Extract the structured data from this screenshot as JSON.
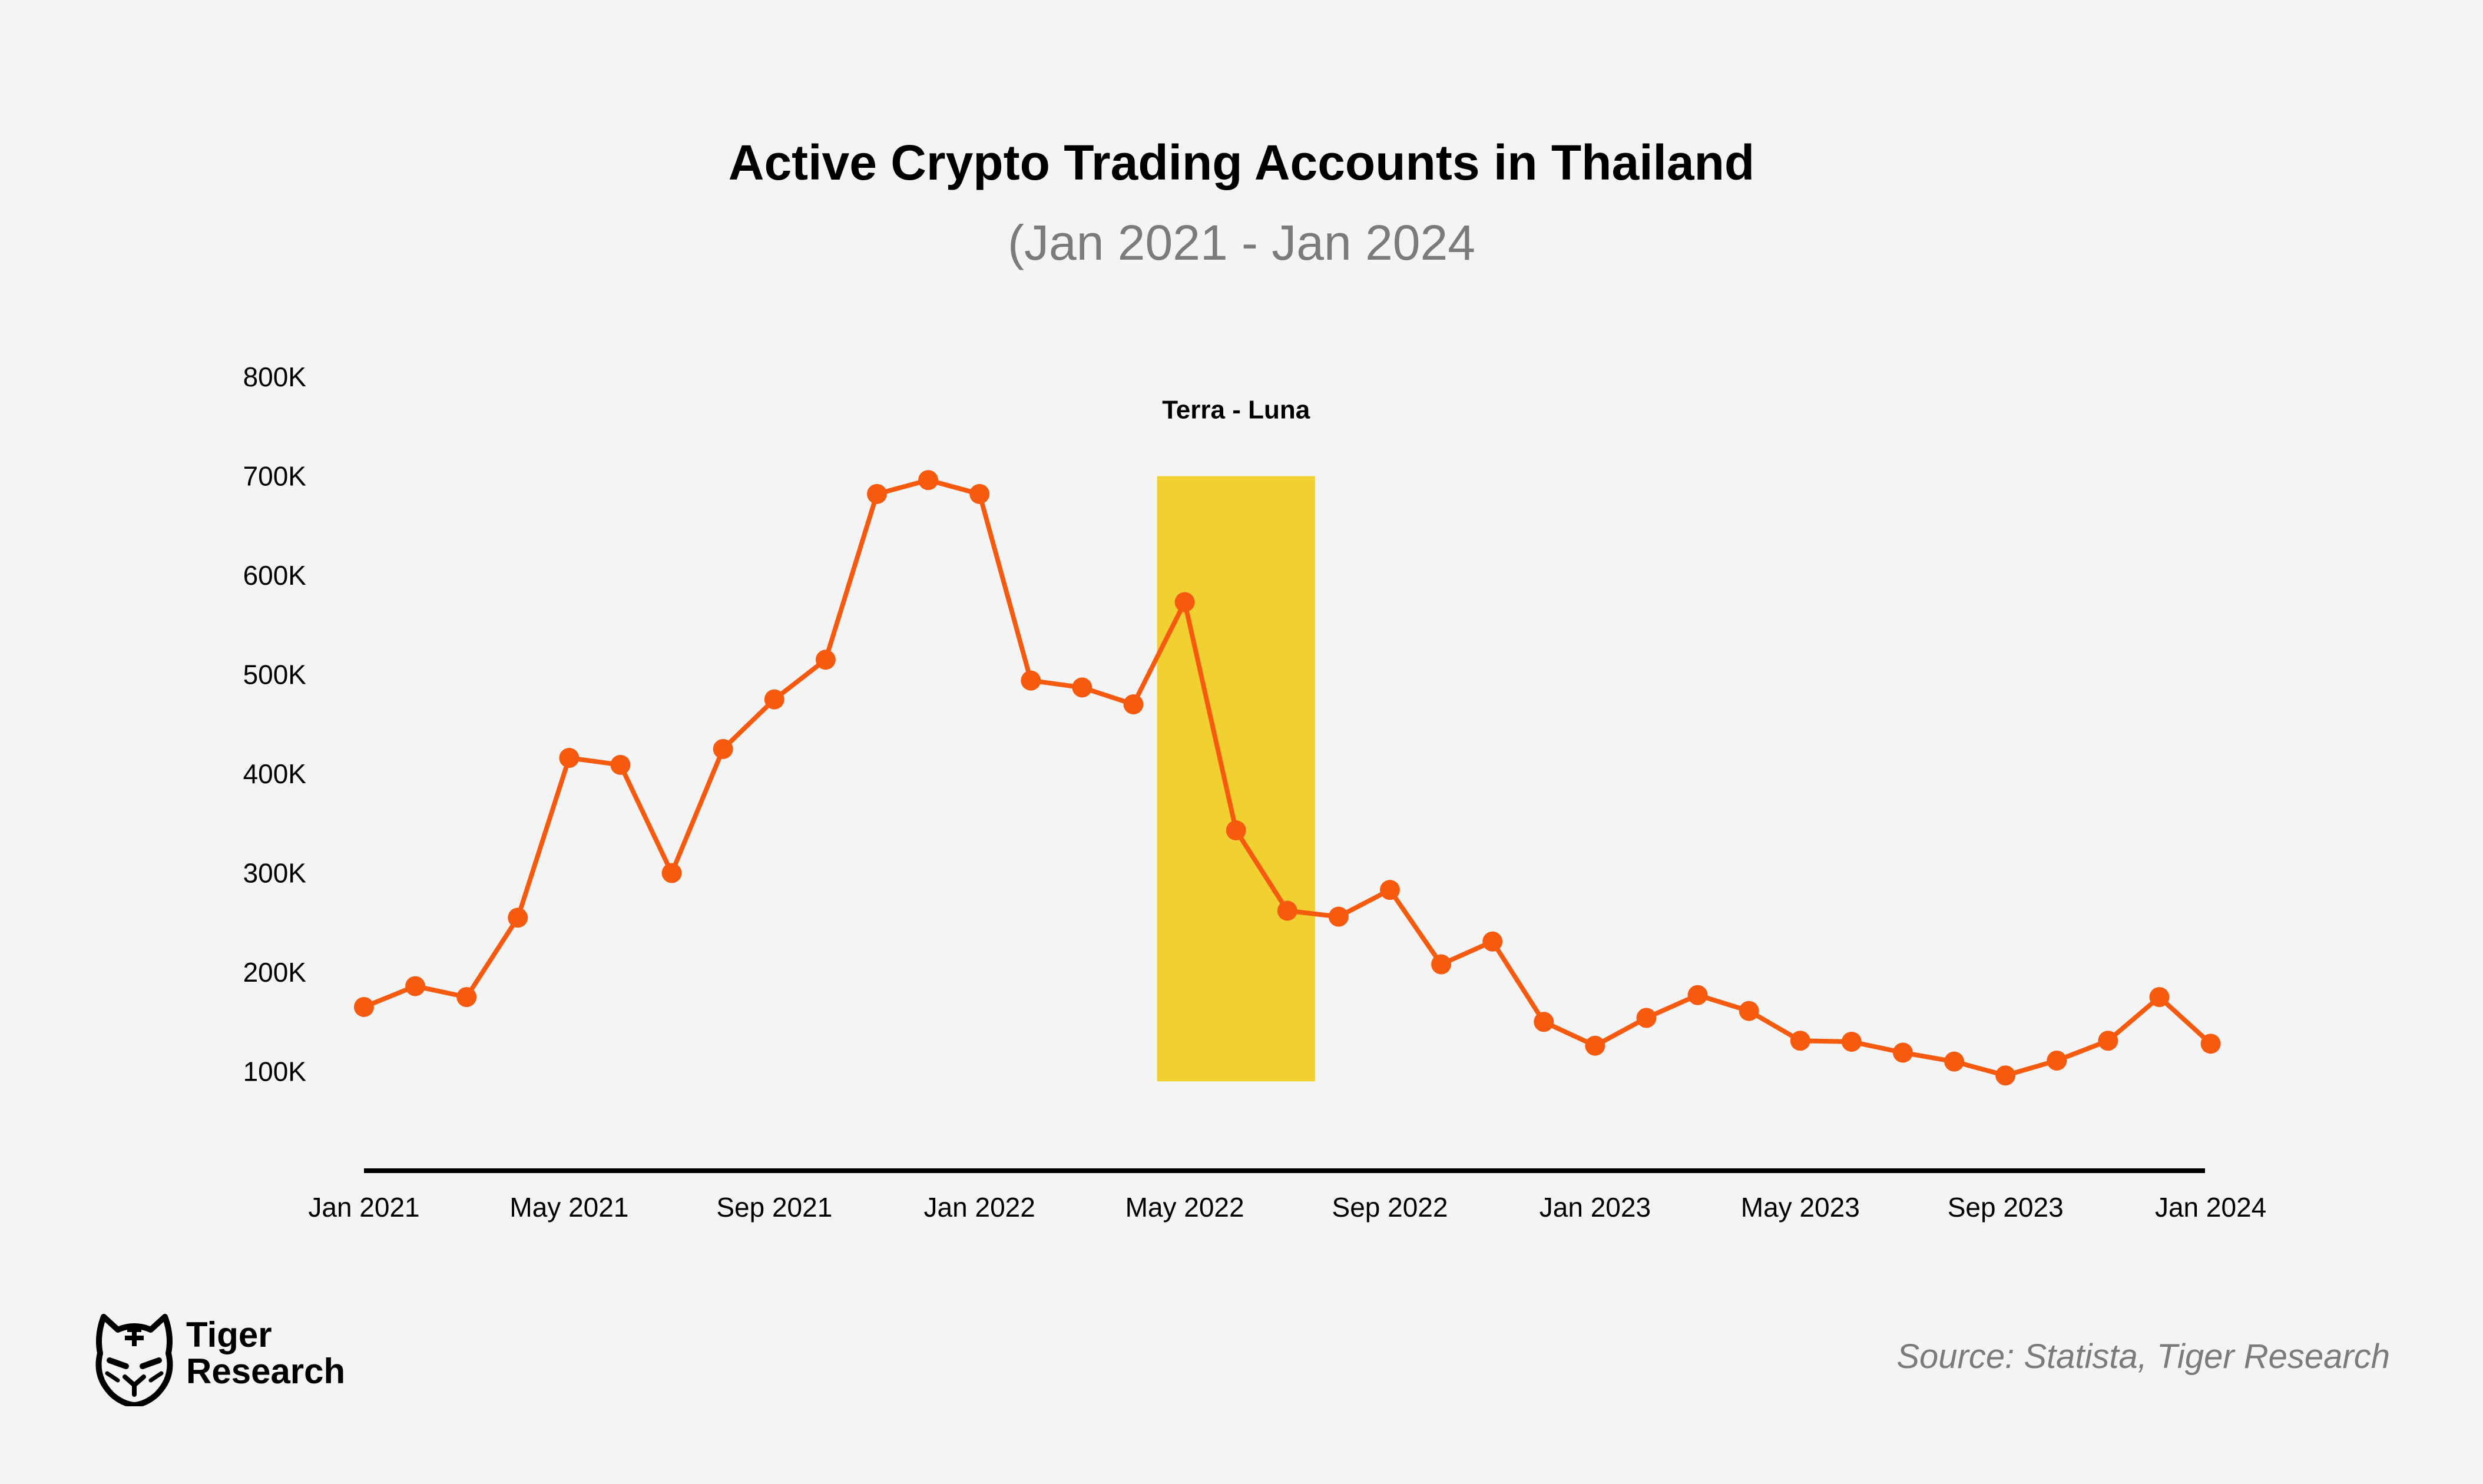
{
  "title": "Active Crypto Trading Accounts in Thailand",
  "subtitle": "(Jan 2021 - Jan 2024",
  "source": "Source: Statista, Tiger Research",
  "logo": {
    "line1": "Tiger",
    "line2": "Research",
    "icon": "tiger-head-icon"
  },
  "colors": {
    "line": "#f55a0f",
    "highlight": "#f1d032",
    "background": "#f4f4f4",
    "axis": "#000000"
  },
  "chart_data": {
    "type": "line",
    "title": "Active Crypto Trading Accounts in Thailand",
    "subtitle": "(Jan 2021 - Jan 2024",
    "ylim": [
      0,
      800000
    ],
    "y_ticks": [
      100000,
      200000,
      300000,
      400000,
      500000,
      600000,
      700000,
      800000
    ],
    "y_tick_labels": [
      "100K",
      "200K",
      "300K",
      "400K",
      "500K",
      "600K",
      "700K",
      "800K"
    ],
    "x_tick_labels": [
      "Jan 2021",
      "May 2021",
      "Sep 2021",
      "Jan 2022",
      "May 2022",
      "Sep 2022",
      "Jan 2023",
      "May 2023",
      "Sep 2023",
      "Jan 2024"
    ],
    "x_tick_indices": [
      0,
      4,
      8,
      12,
      16,
      20,
      24,
      28,
      32,
      36
    ],
    "grid": false,
    "x": [
      "2021-01",
      "2021-02",
      "2021-03",
      "2021-04",
      "2021-05",
      "2021-06",
      "2021-07",
      "2021-08",
      "2021-09",
      "2021-10",
      "2021-11",
      "2021-12",
      "2022-01",
      "2022-02",
      "2022-03",
      "2022-04",
      "2022-05",
      "2022-06",
      "2022-07",
      "2022-08",
      "2022-09",
      "2022-10",
      "2022-11",
      "2022-12",
      "2023-01",
      "2023-02",
      "2023-03",
      "2023-04",
      "2023-05",
      "2023-06",
      "2023-07",
      "2023-08",
      "2023-09",
      "2023-10",
      "2023-11",
      "2023-12",
      "2024-01",
      "2024-02"
    ],
    "values": [
      165000,
      186000,
      175000,
      255000,
      416000,
      409000,
      300000,
      425000,
      475000,
      515000,
      682000,
      696000,
      682000,
      494000,
      487000,
      470000,
      573000,
      343000,
      262000,
      256000,
      283000,
      208000,
      231000,
      150000,
      126000,
      154000,
      177000,
      161000,
      131000,
      130000,
      119000,
      110000,
      96000,
      111000,
      131000,
      175000,
      128000,
      null
    ],
    "annotations": [
      {
        "label": "Terra - Luna",
        "x_start": "2022-05",
        "x_end": "2022-07",
        "y_start": 90000,
        "y_end": 700000
      }
    ]
  }
}
